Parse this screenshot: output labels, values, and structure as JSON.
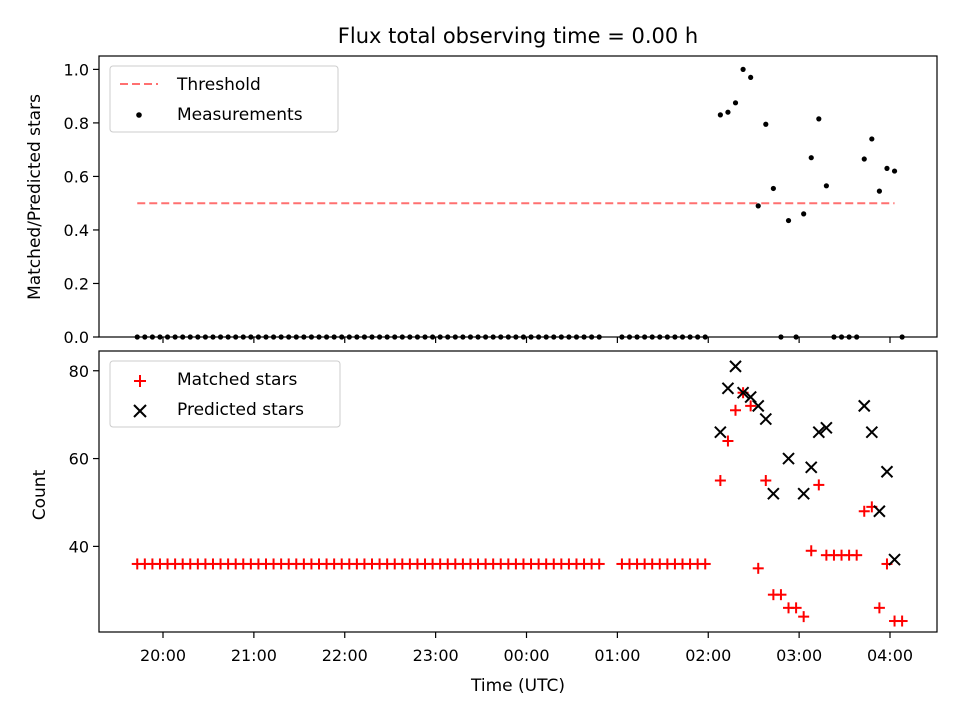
{
  "chart_data": [
    {
      "type": "scatter",
      "title": "Flux total observing time = 0.00 h",
      "ylabel": "Matched/Predicted stars",
      "xlabel": "",
      "ylim": [
        0,
        1.05
      ],
      "yticks": [
        "0.0",
        "0.2",
        "0.4",
        "0.6",
        "0.8",
        "1.0"
      ],
      "ytick_values": [
        0,
        0.2,
        0.4,
        0.6,
        0.8,
        1.0
      ],
      "xtick_values": [
        "20:00",
        "21:00",
        "22:00",
        "23:00",
        "00:00",
        "01:00",
        "02:00",
        "03:00",
        "04:00"
      ],
      "grid": false,
      "legend_position": "top-left",
      "series": [
        {
          "name": "Threshold",
          "kind": "line",
          "style": "dashed",
          "color": "#ff7070",
          "x": [
            "19:43",
            "04:03"
          ],
          "y": [
            0.5,
            0.5
          ]
        },
        {
          "name": "Measurements",
          "kind": "scatter",
          "marker": "dot",
          "color": "#000000",
          "x": [
            "02:08",
            "02:13",
            "02:18",
            "02:23",
            "02:28",
            "02:33",
            "02:38",
            "02:43",
            "02:48",
            "02:53",
            "02:58",
            "03:03",
            "03:08",
            "03:13",
            "03:18",
            "03:23",
            "03:43",
            "03:48",
            "03:53",
            "03:58",
            "04:03"
          ],
          "y": [
            0.83,
            0.84,
            0.875,
            1.0,
            0.97,
            0.49,
            0.795,
            0.555,
            0.0,
            0.435,
            0.0,
            0.46,
            0.67,
            0.815,
            0.565,
            0.0,
            0.665,
            0.74,
            0.545,
            0.63,
            0.62
          ]
        },
        {
          "name": "",
          "kind": "scatter",
          "marker": "dot",
          "color": "#000000",
          "x": [
            "19:43",
            "19:48",
            "19:53",
            "19:58",
            "20:03",
            "20:08",
            "20:13",
            "20:18",
            "20:23",
            "20:28",
            "20:33",
            "20:38",
            "20:43",
            "20:48",
            "20:53",
            "20:58",
            "21:03",
            "21:08",
            "21:13",
            "21:18",
            "21:23",
            "21:28",
            "21:33",
            "21:38",
            "21:43",
            "21:48",
            "21:53",
            "21:58",
            "22:03",
            "22:08",
            "22:13",
            "22:18",
            "22:23",
            "22:28",
            "22:33",
            "22:38",
            "22:43",
            "22:48",
            "22:53",
            "22:58",
            "23:03",
            "23:08",
            "23:13",
            "23:18",
            "23:23",
            "23:28",
            "23:33",
            "23:38",
            "23:43",
            "23:48",
            "23:53",
            "23:58",
            "00:03",
            "00:08",
            "00:13",
            "00:18",
            "00:23",
            "00:28",
            "00:33",
            "00:38",
            "00:43",
            "00:48",
            "01:03",
            "01:08",
            "01:13",
            "01:18",
            "01:23",
            "01:28",
            "01:33",
            "01:38",
            "01:43",
            "01:48",
            "01:53",
            "01:58",
            "03:28",
            "03:33",
            "03:38",
            "04:08"
          ],
          "y": [
            0,
            0,
            0,
            0,
            0,
            0,
            0,
            0,
            0,
            0,
            0,
            0,
            0,
            0,
            0,
            0,
            0,
            0,
            0,
            0,
            0,
            0,
            0,
            0,
            0,
            0,
            0,
            0,
            0,
            0,
            0,
            0,
            0,
            0,
            0,
            0,
            0,
            0,
            0,
            0,
            0,
            0,
            0,
            0,
            0,
            0,
            0,
            0,
            0,
            0,
            0,
            0,
            0,
            0,
            0,
            0,
            0,
            0,
            0,
            0,
            0,
            0,
            0,
            0,
            0,
            0,
            0,
            0,
            0,
            0,
            0,
            0,
            0,
            0,
            0,
            0,
            0,
            0
          ]
        }
      ]
    },
    {
      "type": "scatter",
      "title": "",
      "ylabel": "Count",
      "xlabel": "Time (UTC)",
      "ylim": [
        20.5,
        84.5
      ],
      "yticks": [
        "40",
        "60",
        "80"
      ],
      "ytick_values": [
        40,
        60,
        80
      ],
      "xticks": [
        "20:00",
        "21:00",
        "22:00",
        "23:00",
        "00:00",
        "01:00",
        "02:00",
        "03:00",
        "04:00"
      ],
      "grid": false,
      "legend_position": "top-left",
      "series": [
        {
          "name": "Matched stars",
          "marker": "plus",
          "color": "#ff0000",
          "x": [
            "19:43",
            "19:48",
            "19:53",
            "19:58",
            "20:03",
            "20:08",
            "20:13",
            "20:18",
            "20:23",
            "20:28",
            "20:33",
            "20:38",
            "20:43",
            "20:48",
            "20:53",
            "20:58",
            "21:03",
            "21:08",
            "21:13",
            "21:18",
            "21:23",
            "21:28",
            "21:33",
            "21:38",
            "21:43",
            "21:48",
            "21:53",
            "21:58",
            "22:03",
            "22:08",
            "22:13",
            "22:18",
            "22:23",
            "22:28",
            "22:33",
            "22:38",
            "22:43",
            "22:48",
            "22:53",
            "22:58",
            "23:03",
            "23:08",
            "23:13",
            "23:18",
            "23:23",
            "23:28",
            "23:33",
            "23:38",
            "23:43",
            "23:48",
            "23:53",
            "23:58",
            "00:03",
            "00:08",
            "00:13",
            "00:18",
            "00:23",
            "00:28",
            "00:33",
            "00:38",
            "00:43",
            "00:48",
            "01:03",
            "01:08",
            "01:13",
            "01:18",
            "01:23",
            "01:28",
            "01:33",
            "01:38",
            "01:43",
            "01:48",
            "01:53",
            "01:58",
            "02:08",
            "02:13",
            "02:18",
            "02:23",
            "02:28",
            "02:33",
            "02:38",
            "02:43",
            "02:48",
            "02:53",
            "02:58",
            "03:03",
            "03:08",
            "03:13",
            "03:18",
            "03:23",
            "03:28",
            "03:33",
            "03:38",
            "03:43",
            "03:48",
            "03:53",
            "03:58",
            "04:03",
            "04:08"
          ],
          "y": [
            36,
            36,
            36,
            36,
            36,
            36,
            36,
            36,
            36,
            36,
            36,
            36,
            36,
            36,
            36,
            36,
            36,
            36,
            36,
            36,
            36,
            36,
            36,
            36,
            36,
            36,
            36,
            36,
            36,
            36,
            36,
            36,
            36,
            36,
            36,
            36,
            36,
            36,
            36,
            36,
            36,
            36,
            36,
            36,
            36,
            36,
            36,
            36,
            36,
            36,
            36,
            36,
            36,
            36,
            36,
            36,
            36,
            36,
            36,
            36,
            36,
            36,
            36,
            36,
            36,
            36,
            36,
            36,
            36,
            36,
            36,
            36,
            36,
            36,
            55,
            64,
            71,
            75,
            72,
            35,
            55,
            29,
            29,
            26,
            26,
            24,
            39,
            54,
            38,
            38,
            38,
            38,
            38,
            48,
            49,
            26,
            36,
            23,
            23
          ]
        },
        {
          "name": "Predicted stars",
          "marker": "x",
          "color": "#000000",
          "x": [
            "02:08",
            "02:13",
            "02:18",
            "02:23",
            "02:28",
            "02:33",
            "02:38",
            "02:43",
            "02:53",
            "03:03",
            "03:08",
            "03:13",
            "03:18",
            "03:43",
            "03:48",
            "03:53",
            "03:58",
            "04:03"
          ],
          "y": [
            66,
            76,
            81,
            75,
            74,
            72,
            69,
            52,
            60,
            52,
            58,
            66,
            67,
            72,
            66,
            48,
            57,
            37
          ]
        }
      ]
    }
  ]
}
